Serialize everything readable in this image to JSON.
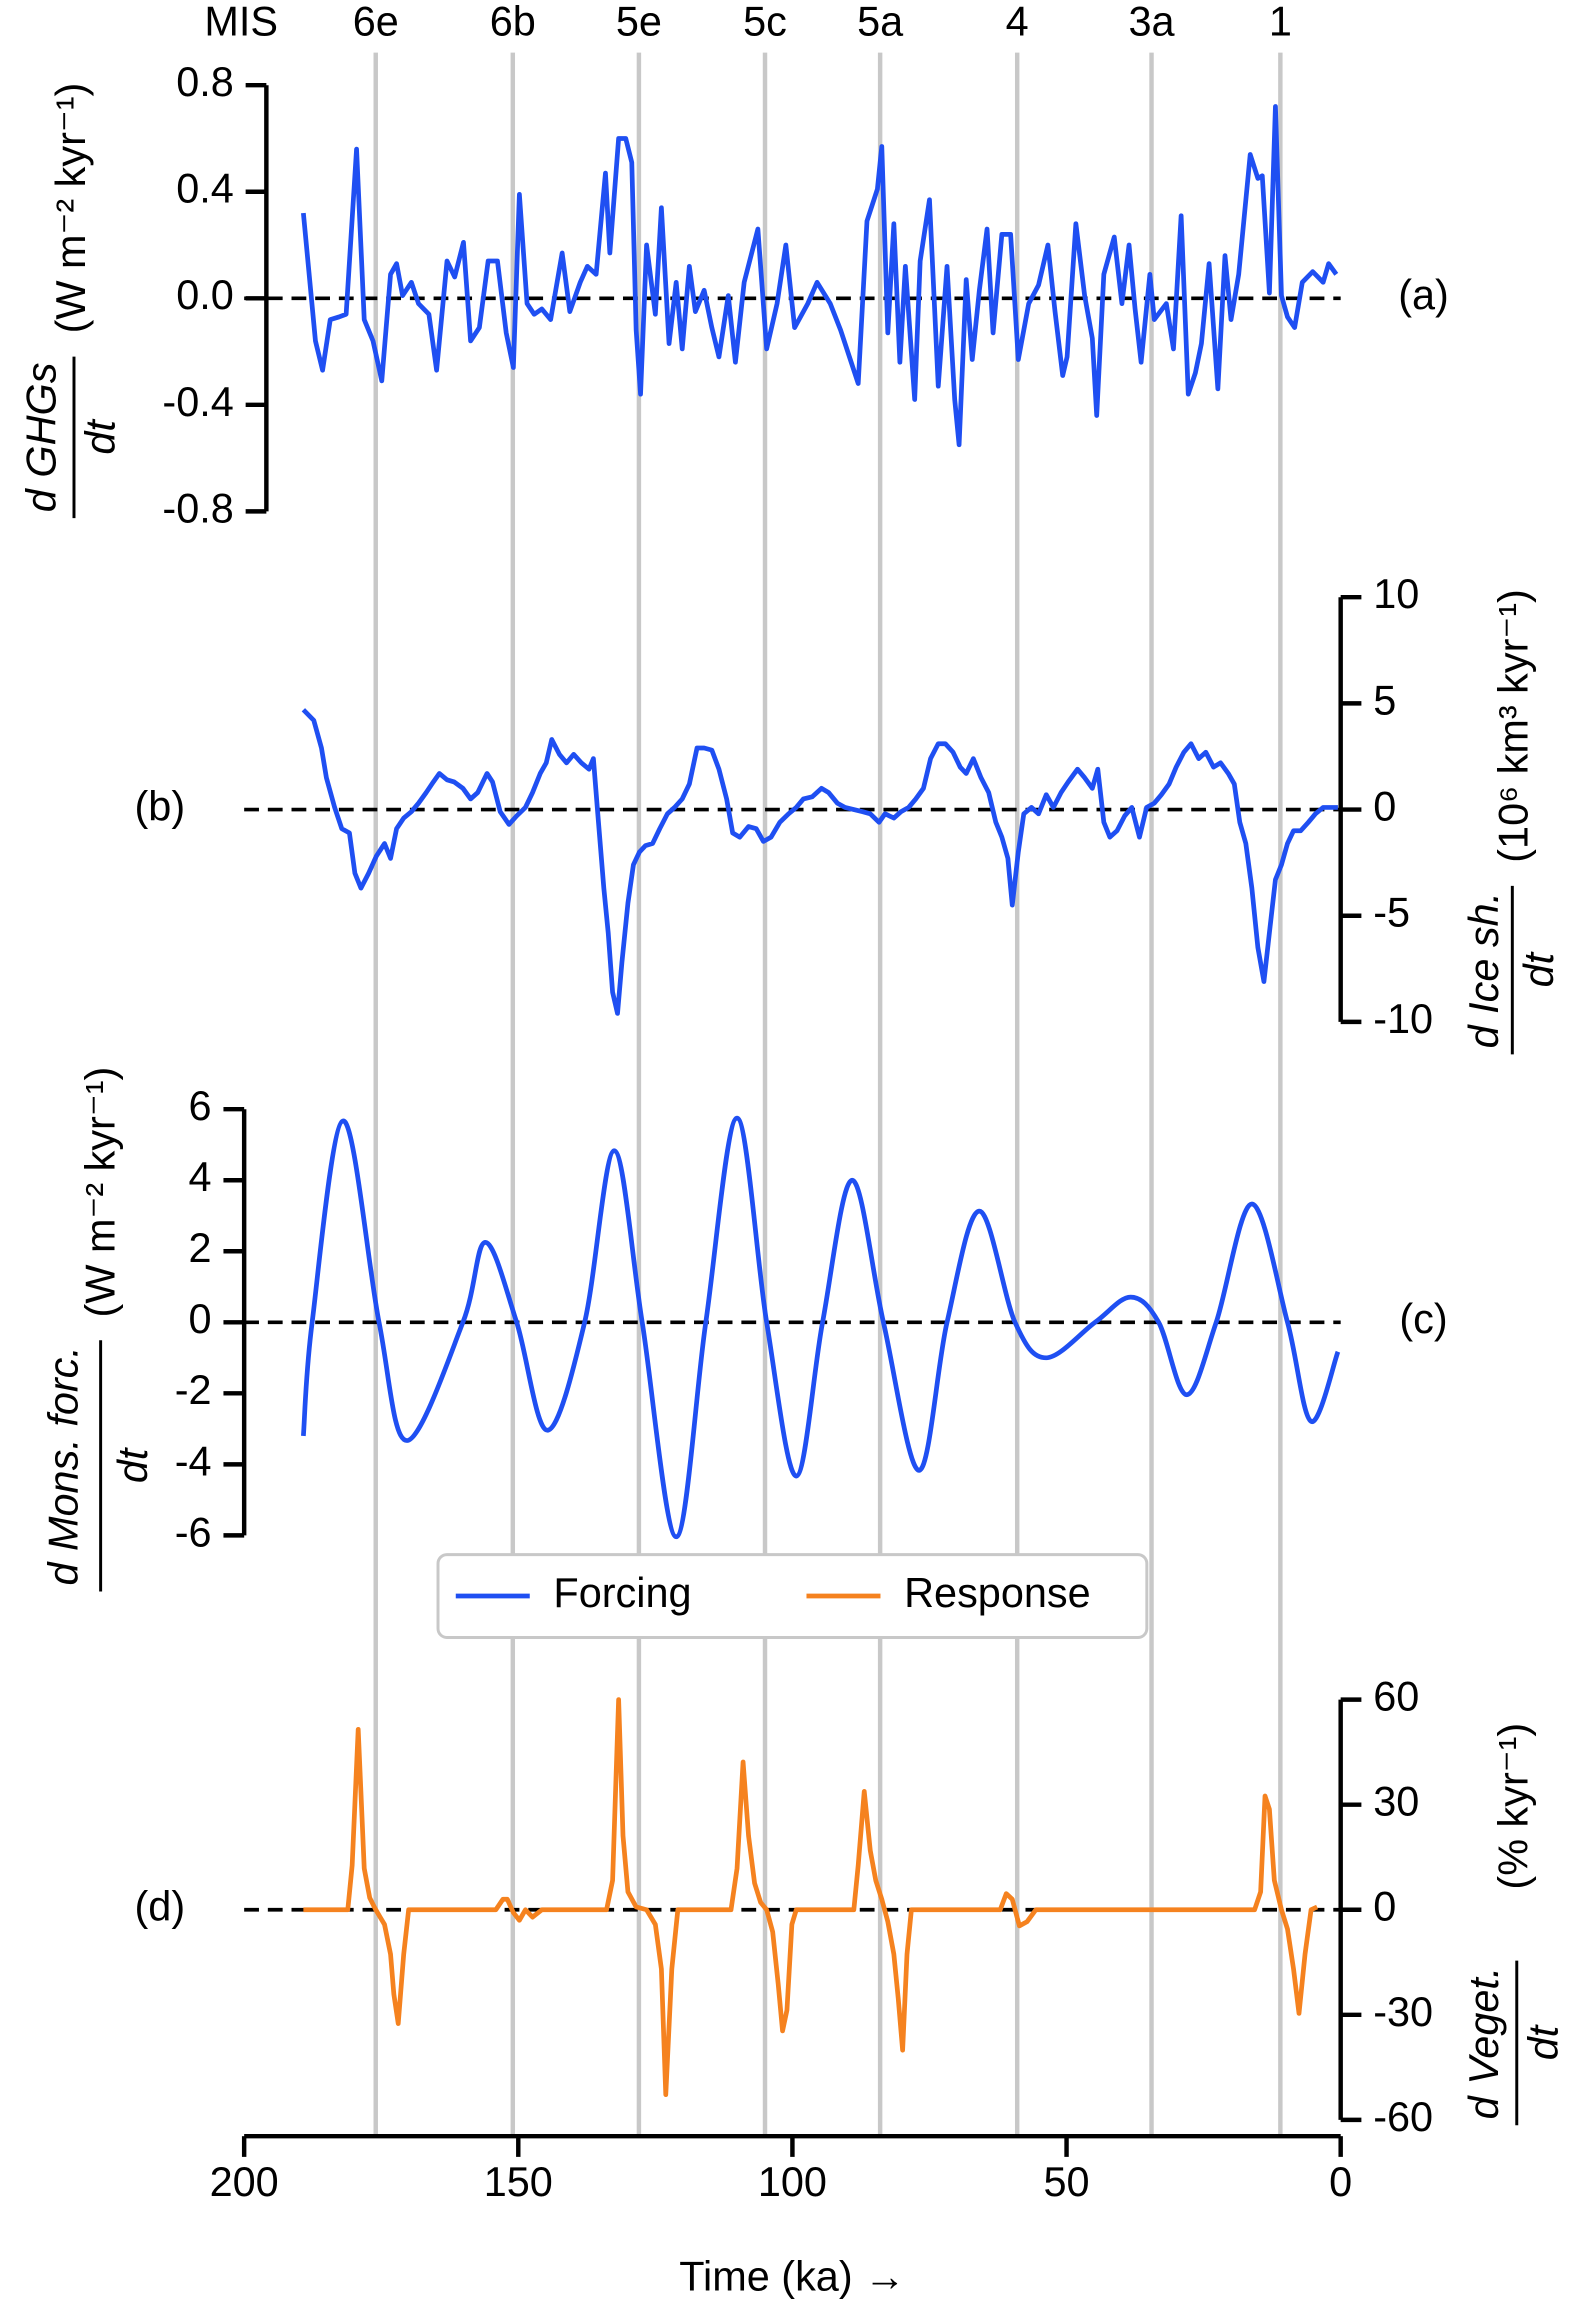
{
  "chart_data": [
    {
      "type": "line",
      "panel_label": "(a)",
      "ylabel_numerator": "d GHGs",
      "ylabel_denominator": "dt",
      "ylabel_unit": "(W m⁻² kyr⁻¹)",
      "yaxis_side": "left",
      "ylim": [
        -0.8,
        0.8
      ],
      "yticks": [
        -0.8,
        -0.4,
        {
          "value": 0,
          "label": "0.0"
        },
        0.4,
        0.8
      ],
      "zero_line": true,
      "mis_label": "MIS",
      "mis_stages": [
        {
          "x": 176,
          "label": "6e"
        },
        {
          "x": 151,
          "label": "6b"
        },
        {
          "x": 128,
          "label": "5e"
        },
        {
          "x": 105,
          "label": "5c"
        },
        {
          "x": 84,
          "label": "5a"
        },
        {
          "x": 59,
          "label": "4"
        },
        {
          "x": 34.5,
          "label": "3a"
        },
        {
          "x": 11,
          "label": "1"
        }
      ],
      "x": [
        189.2,
        187.0,
        185.7,
        184.3,
        182.7,
        181.4,
        179.5,
        178.1,
        176.5,
        174.9,
        173.3,
        172.2,
        171.1,
        169.5,
        168.2,
        166.3,
        164.9,
        163.0,
        161.6,
        160.0,
        158.7,
        157.1,
        155.5,
        153.8,
        152.2,
        150.9,
        149.8,
        148.4,
        147.1,
        145.7,
        144.1,
        142.0,
        140.6,
        138.7,
        137.4,
        135.8,
        134.1,
        133.3,
        131.7,
        130.4,
        129.3,
        128.5,
        127.7,
        126.6,
        125.0,
        123.9,
        122.5,
        121.2,
        120.1,
        118.8,
        117.7,
        116.1,
        114.7,
        113.4,
        111.7,
        110.4,
        108.8,
        106.3,
        104.7,
        102.8,
        101.2,
        99.6,
        97.2,
        95.5,
        93.1,
        91.2,
        89.6,
        88.0,
        86.4,
        84.5,
        83.7,
        82.6,
        81.5,
        80.4,
        79.4,
        77.7,
        76.7,
        75.0,
        73.4,
        71.8,
        70.4,
        69.6,
        68.3,
        67.2,
        65.9,
        64.5,
        63.4,
        61.8,
        60.2,
        58.8,
        56.9,
        55.1,
        53.4,
        52.1,
        50.7,
        49.9,
        48.3,
        46.7,
        45.3,
        44.5,
        43.2,
        41.3,
        39.9,
        38.6,
        37.5,
        36.4,
        34.8,
        34.0,
        31.8,
        30.5,
        29.1,
        27.8,
        26.5,
        25.4,
        24.0,
        22.4,
        21.1,
        20.0,
        18.6,
        16.5,
        15.1,
        14.3,
        13.0,
        11.9,
        10.8,
        9.7,
        8.4,
        7.0,
        5.1,
        3.2,
        2.2,
        0.8
      ],
      "series": [
        {
          "name": "Forcing",
          "color": "#1f4ff2",
          "values": [
            0.32,
            -0.16,
            -0.27,
            -0.08,
            -0.07,
            -0.06,
            0.56,
            -0.08,
            -0.16,
            -0.31,
            0.09,
            0.13,
            0.01,
            0.06,
            -0.02,
            -0.06,
            -0.27,
            0.14,
            0.08,
            0.21,
            -0.16,
            -0.11,
            0.14,
            0.14,
            -0.13,
            -0.26,
            0.39,
            -0.02,
            -0.06,
            -0.04,
            -0.08,
            0.17,
            -0.05,
            0.06,
            0.12,
            0.09,
            0.47,
            0.17,
            0.6,
            0.6,
            0.51,
            -0.12,
            -0.36,
            0.2,
            -0.06,
            0.34,
            -0.17,
            0.06,
            -0.19,
            0.12,
            -0.05,
            0.03,
            -0.11,
            -0.22,
            0.01,
            -0.24,
            0.06,
            0.26,
            -0.19,
            -0.02,
            0.2,
            -0.11,
            -0.02,
            0.06,
            -0.02,
            -0.12,
            -0.22,
            -0.32,
            0.29,
            0.41,
            0.57,
            -0.13,
            0.28,
            -0.24,
            0.12,
            -0.38,
            0.14,
            0.37,
            -0.33,
            0.12,
            -0.38,
            -0.55,
            0.07,
            -0.23,
            0.03,
            0.26,
            -0.13,
            0.24,
            0.24,
            -0.23,
            -0.02,
            0.05,
            0.2,
            -0.05,
            -0.29,
            -0.22,
            0.28,
            0.01,
            -0.15,
            -0.44,
            0.09,
            0.23,
            -0.02,
            0.2,
            -0.04,
            -0.24,
            0.09,
            -0.08,
            -0.02,
            -0.19,
            0.31,
            -0.36,
            -0.28,
            -0.17,
            0.13,
            -0.34,
            0.16,
            -0.08,
            0.09,
            0.54,
            0.45,
            0.46,
            0.02,
            0.72,
            0.01,
            -0.07,
            -0.11,
            0.06,
            0.1,
            0.06,
            0.13,
            0.09
          ]
        }
      ]
    },
    {
      "type": "line",
      "panel_label": "(b)",
      "ylabel_numerator": "d Ice sh.",
      "ylabel_denominator": "dt",
      "ylabel_unit": "(10⁶ km³ kyr⁻¹)",
      "yaxis_side": "right",
      "ylim": [
        -10,
        10
      ],
      "yticks": [
        -10,
        -5,
        0,
        5,
        10
      ],
      "zero_line": true,
      "x": [
        189.2,
        187.3,
        185.9,
        185.0,
        183.5,
        182.2,
        180.8,
        179.8,
        178.7,
        177.3,
        175.9,
        174.4,
        173.3,
        172.2,
        170.9,
        169.5,
        168.2,
        166.8,
        165.5,
        164.4,
        163.0,
        161.7,
        160.1,
        158.7,
        157.4,
        155.7,
        154.7,
        153.3,
        151.7,
        150.3,
        148.7,
        147.4,
        146.0,
        144.9,
        143.9,
        142.5,
        141.2,
        139.9,
        138.5,
        137.1,
        136.3,
        135.5,
        134.4,
        133.6,
        132.8,
        131.9,
        131.1,
        130.0,
        129.0,
        127.9,
        126.8,
        125.5,
        124.2,
        122.8,
        121.5,
        120.1,
        118.8,
        117.4,
        116.1,
        114.7,
        113.4,
        112.0,
        110.9,
        109.6,
        108.0,
        106.6,
        105.3,
        103.9,
        102.3,
        100.7,
        99.3,
        98.0,
        96.4,
        94.7,
        93.4,
        91.8,
        90.4,
        88.8,
        87.2,
        85.8,
        84.2,
        83.1,
        81.5,
        80.2,
        78.8,
        77.5,
        76.1,
        74.8,
        73.4,
        72.1,
        70.7,
        69.4,
        68.3,
        67.0,
        65.6,
        64.2,
        62.9,
        61.8,
        60.7,
        59.9,
        58.8,
        57.8,
        56.4,
        55.1,
        53.7,
        52.4,
        51.0,
        49.7,
        48.0,
        46.7,
        45.3,
        44.3,
        43.2,
        42.1,
        40.8,
        39.4,
        38.1,
        36.7,
        35.4,
        34.0,
        32.7,
        31.3,
        30.0,
        28.6,
        27.3,
        25.9,
        24.6,
        23.2,
        21.9,
        20.5,
        19.4,
        18.4,
        17.3,
        16.2,
        15.1,
        14.0,
        13.0,
        11.9,
        10.8,
        9.7,
        8.6,
        7.3,
        5.9,
        4.6,
        3.2,
        1.9,
        0.5
      ],
      "series": [
        {
          "color": "#1f4ff2",
          "values": [
            4.7,
            4.2,
            2.9,
            1.5,
            0.1,
            -0.9,
            -1.1,
            -3.0,
            -3.7,
            -3.0,
            -2.2,
            -1.6,
            -2.3,
            -0.9,
            -0.4,
            -0.1,
            0.3,
            0.8,
            1.3,
            1.7,
            1.4,
            1.3,
            1.0,
            0.5,
            0.8,
            1.7,
            1.3,
            -0.1,
            -0.7,
            -0.3,
            0.1,
            0.8,
            1.7,
            2.2,
            3.3,
            2.6,
            2.2,
            2.6,
            2.2,
            1.9,
            2.4,
            -0.2,
            -3.7,
            -5.8,
            -8.6,
            -9.6,
            -7.2,
            -4.4,
            -2.6,
            -2.0,
            -1.7,
            -1.6,
            -0.9,
            -0.2,
            0.1,
            0.5,
            1.2,
            2.9,
            2.9,
            2.8,
            1.9,
            0.5,
            -1.1,
            -1.3,
            -0.8,
            -0.9,
            -1.5,
            -1.3,
            -0.6,
            -0.2,
            0.1,
            0.5,
            0.6,
            1.0,
            0.8,
            0.3,
            0.1,
            0.0,
            -0.1,
            -0.2,
            -0.6,
            -0.2,
            -0.4,
            -0.1,
            0.1,
            0.5,
            1.0,
            2.4,
            3.1,
            3.1,
            2.7,
            2.0,
            1.7,
            2.4,
            1.5,
            0.8,
            -0.6,
            -1.3,
            -2.3,
            -4.5,
            -2.0,
            -0.2,
            0.1,
            -0.2,
            0.7,
            0.1,
            0.8,
            1.3,
            1.9,
            1.5,
            1.0,
            1.9,
            -0.6,
            -1.3,
            -1.0,
            -0.3,
            0.1,
            -1.3,
            0.1,
            0.3,
            0.7,
            1.2,
            2.0,
            2.7,
            3.1,
            2.4,
            2.7,
            2.0,
            2.2,
            1.7,
            1.2,
            -0.6,
            -1.6,
            -3.7,
            -6.5,
            -8.1,
            -5.8,
            -3.3,
            -2.6,
            -1.6,
            -1.0,
            -1.0,
            -0.6,
            -0.2,
            0.1,
            0.1,
            0.1
          ]
        }
      ]
    },
    {
      "type": "line",
      "panel_label": "(c)",
      "smooth": true,
      "legend": "lower center",
      "ylabel_numerator": "d Mons. forc.",
      "ylabel_denominator": "dt",
      "ylabel_unit": "(W m⁻² kyr⁻¹)",
      "yaxis_side": "left",
      "ylim": [
        -6,
        6
      ],
      "yticks": [
        -6,
        -4,
        -2,
        0,
        2,
        4,
        6
      ],
      "zero_line": true,
      "x": [
        189.2,
        187.6,
        181.9,
        175.4,
        170.3,
        160.1,
        156.0,
        150.3,
        144.7,
        137.9,
        132.5,
        127.4,
        121.2,
        115.8,
        110.1,
        104.7,
        99.3,
        94.5,
        89.1,
        83.4,
        76.9,
        71.8,
        65.9,
        59.4,
        53.7,
        44.8,
        38.3,
        33.2,
        28.1,
        22.7,
        16.2,
        9.7,
        5.4,
        0.5
      ],
      "series": [
        {
          "color": "#1f4ff2",
          "values": [
            -3.2,
            0,
            5.67,
            0,
            -3.33,
            0,
            2.25,
            0,
            -3.04,
            0,
            4.83,
            0,
            -6.04,
            0,
            5.75,
            0,
            -4.33,
            0,
            4.0,
            0,
            -4.17,
            0,
            3.13,
            0,
            -1.0,
            0,
            0.71,
            0,
            -2.04,
            0,
            3.33,
            0,
            -2.79,
            -0.83
          ]
        }
      ]
    },
    {
      "type": "line",
      "panel_label": "(d)",
      "ylabel_numerator": "d Veget.",
      "ylabel_denominator": "dt",
      "ylabel_unit": "(% kyr⁻¹)",
      "yaxis_side": "right",
      "ylim": [
        -60,
        60
      ],
      "yticks": [
        -60,
        -30,
        0,
        30,
        60
      ],
      "zero_line": true,
      "xlim": [
        200,
        0
      ],
      "xticks": [
        200,
        150,
        100,
        50,
        0
      ],
      "xlabel": "Time (ka) →",
      "x": [
        189.2,
        181.1,
        180.3,
        179.2,
        178.1,
        177.1,
        176.0,
        174.4,
        173.3,
        172.7,
        171.9,
        170.9,
        170.0,
        154.1,
        152.8,
        152.0,
        150.9,
        149.8,
        148.7,
        147.4,
        145.7,
        133.9,
        132.8,
        131.7,
        130.9,
        130.0,
        128.5,
        126.6,
        125.0,
        123.9,
        123.1,
        122.0,
        120.9,
        111.2,
        110.1,
        109.0,
        108.0,
        106.9,
        105.8,
        104.7,
        103.6,
        102.6,
        101.8,
        101.0,
        100.1,
        99.3,
        88.8,
        88.0,
        86.9,
        85.8,
        84.8,
        83.7,
        82.6,
        81.5,
        80.7,
        79.9,
        79.1,
        78.3,
        62.1,
        61.0,
        59.9,
        58.6,
        57.2,
        55.6,
        15.7,
        14.6,
        13.8,
        13.0,
        12.1,
        10.8,
        9.7,
        8.6,
        7.6,
        6.5,
        5.4,
        4.3
      ],
      "series": [
        {
          "name": "Response",
          "color": "#f5821f",
          "values": [
            0,
            0,
            12.7,
            51.5,
            11.8,
            3.4,
            0,
            -4.2,
            -12.7,
            -24.1,
            -32.5,
            -12.7,
            0,
            0,
            3,
            3,
            -0.8,
            -3,
            0,
            -2.1,
            0,
            0,
            8.4,
            60,
            21.1,
            5.1,
            0.8,
            0,
            -4.2,
            -16.9,
            -52.8,
            -16.9,
            0,
            0,
            11.8,
            42.2,
            21.1,
            7.6,
            2.1,
            0,
            -6.3,
            -21.1,
            -34.6,
            -28.7,
            -4.2,
            0,
            0,
            12.7,
            33.8,
            16.9,
            8.4,
            3,
            -3.4,
            -12.7,
            -25.3,
            -40.1,
            -12.7,
            0,
            0,
            4.6,
            3,
            -4.6,
            -3.4,
            0,
            0,
            5.1,
            32.5,
            28.7,
            8.4,
            0,
            -5.5,
            -16.9,
            -29.6,
            -12.7,
            0,
            0.8
          ]
        }
      ]
    }
  ]
}
